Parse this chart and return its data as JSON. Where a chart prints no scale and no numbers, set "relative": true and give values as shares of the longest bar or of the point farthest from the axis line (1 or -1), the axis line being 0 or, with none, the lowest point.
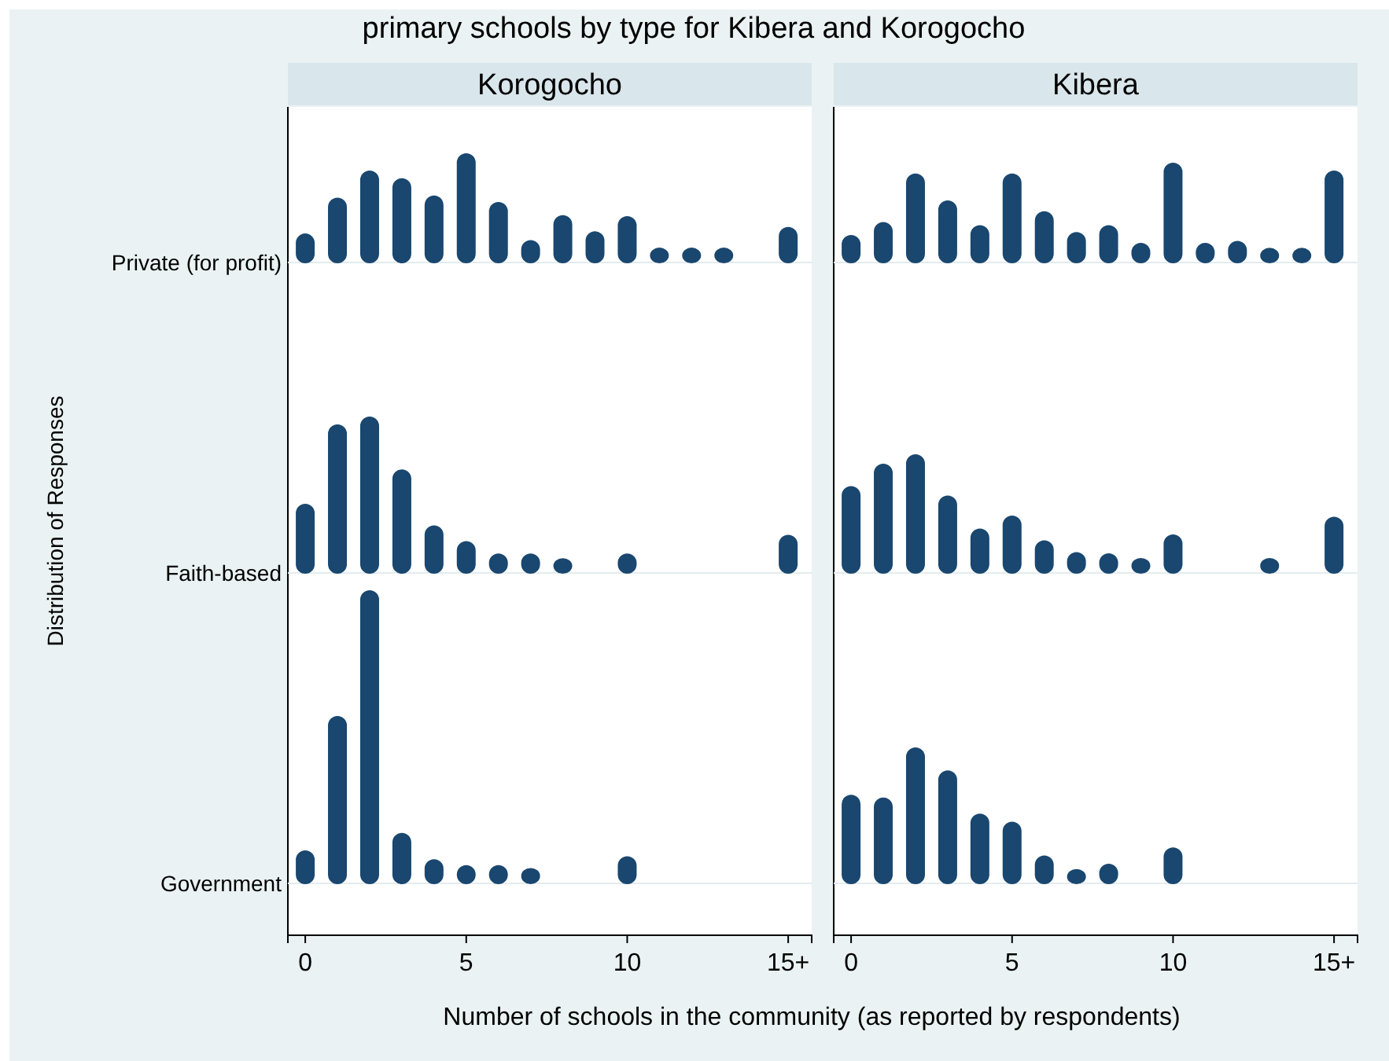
{
  "chart_data": [
    {
      "type": "bar",
      "title": "Korogocho",
      "annotations": [
        "primary schools by type for Kibera and Korogocho"
      ],
      "relative": true,
      "tick_labels": false,
      "xlim": [
        -0.54,
        15.73
      ],
      "series": [
        {
          "name": "Private (for profit)",
          "color": "#1a476f",
          "x": [
            0,
            1,
            2,
            3,
            4,
            5,
            6,
            7,
            8,
            9,
            10,
            11,
            12,
            13,
            15
          ],
          "values": [
            0.26,
            0.59,
            0.84,
            0.77,
            0.61,
            1,
            0.55,
            0.2,
            0.43,
            0.28,
            0.42,
            0.13,
            0.13,
            0.13,
            0.32
          ]
        }
      ]
    },
    {
      "type": "bar",
      "title": "Kibera",
      "relative": true,
      "tick_labels": false,
      "xlim": [
        -0.54,
        15.73
      ],
      "series": [
        {
          "color": "#1a476f",
          "x": [
            0,
            1,
            2,
            3,
            4,
            5,
            6,
            7,
            8,
            9,
            10,
            11,
            12,
            13,
            14,
            15
          ],
          "values": [
            0.27,
            0.4,
            0.89,
            0.62,
            0.37,
            0.89,
            0.51,
            0.3,
            0.37,
            0.19,
            1,
            0.19,
            0.21,
            0.14,
            0.14,
            0.92
          ]
        }
      ]
    },
    {
      "type": "bar",
      "ylabel": "Distribution of Responses",
      "relative": true,
      "tick_labels": false,
      "xlim": [
        -0.54,
        15.73
      ],
      "series": [
        {
          "name": "Faith-based",
          "color": "#1a476f",
          "x": [
            0,
            1,
            2,
            3,
            4,
            5,
            6,
            7,
            8,
            10,
            15
          ],
          "values": [
            0.44,
            0.95,
            1,
            0.66,
            0.3,
            0.2,
            0.12,
            0.12,
            0.09,
            0.12,
            0.24
          ]
        }
      ]
    },
    {
      "type": "bar",
      "relative": true,
      "tick_labels": false,
      "xlim": [
        -0.54,
        15.73
      ],
      "series": [
        {
          "color": "#1a476f",
          "x": [
            0,
            1,
            2,
            3,
            4,
            5,
            6,
            7,
            8,
            9,
            10,
            13,
            15
          ],
          "values": [
            0.73,
            0.92,
            1,
            0.65,
            0.37,
            0.48,
            0.27,
            0.17,
            0.16,
            0.12,
            0.32,
            0.12,
            0.47
          ]
        }
      ]
    },
    {
      "type": "bar",
      "xlabel": "Number of schools in the community (as reported by respondents)",
      "relative": true,
      "tick_labels": "x",
      "xlim": [
        -0.54,
        15.73
      ],
      "xticks": [
        0,
        5,
        10,
        {
          "value": 15,
          "label": "15+"
        }
      ],
      "series": [
        {
          "name": "Government",
          "color": "#1a476f",
          "x": [
            0,
            1,
            2,
            3,
            4,
            5,
            6,
            7,
            10
          ],
          "values": [
            0.11,
            0.57,
            1,
            0.17,
            0.08,
            0.06,
            0.06,
            0.05,
            0.09
          ]
        }
      ]
    },
    {
      "type": "bar",
      "relative": true,
      "tick_labels": "x",
      "xlim": [
        -0.54,
        15.73
      ],
      "xticks": [
        0,
        5,
        10,
        {
          "value": 15,
          "label": "15+"
        }
      ],
      "series": [
        {
          "color": "#1a476f",
          "x": [
            0,
            1,
            2,
            3,
            4,
            5,
            6,
            7,
            8,
            10
          ],
          "values": [
            0.65,
            0.63,
            1,
            0.83,
            0.51,
            0.45,
            0.2,
            0.1,
            0.14,
            0.26
          ]
        }
      ]
    }
  ]
}
